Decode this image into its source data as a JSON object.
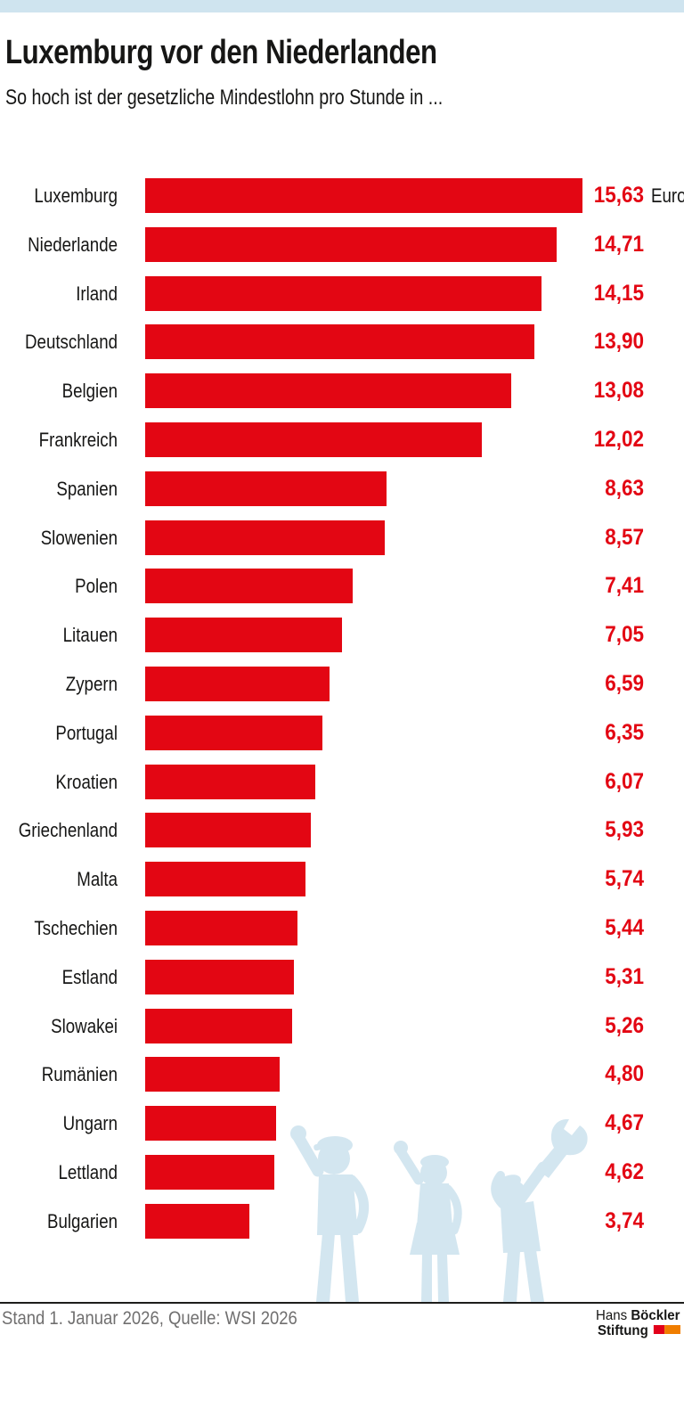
{
  "header": {
    "title": "Luxemburg vor den Niederlanden",
    "subtitle": "So hoch ist der gesetzliche Mindestlohn pro Stunde in ..."
  },
  "chart_data": {
    "type": "bar",
    "orientation": "horizontal",
    "title": "Luxemburg vor den Niederlanden",
    "subtitle": "So hoch ist der gesetzliche Mindestlohn pro Stunde in ...",
    "unit_label": "Euro",
    "xlim": [
      0,
      15.63
    ],
    "grid": false,
    "legend": "none",
    "categories": [
      "Luxemburg",
      "Niederlande",
      "Irland",
      "Deutschland",
      "Belgien",
      "Frankreich",
      "Spanien",
      "Slowenien",
      "Polen",
      "Litauen",
      "Zypern",
      "Portugal",
      "Kroatien",
      "Griechenland",
      "Malta",
      "Tschechien",
      "Estland",
      "Slowakei",
      "Rumänien",
      "Ungarn",
      "Lettland",
      "Bulgarien"
    ],
    "values": [
      15.63,
      14.71,
      14.15,
      13.9,
      13.08,
      12.02,
      8.63,
      8.57,
      7.41,
      7.05,
      6.59,
      6.35,
      6.07,
      5.93,
      5.74,
      5.44,
      5.31,
      5.26,
      4.8,
      4.67,
      4.62,
      3.74
    ],
    "value_labels": [
      "15,63",
      "14,71",
      "14,15",
      "13,90",
      "13,08",
      "12,02",
      "8,63",
      "8,57",
      "7,41",
      "7,05",
      "6,59",
      "6,35",
      "6,07",
      "5,93",
      "5,74",
      "5,44",
      "5,31",
      "5,26",
      "4,80",
      "4,67",
      "4,62",
      "3,74"
    ]
  },
  "footer": {
    "source": "Stand 1. Januar 2026, Quelle: WSI 2026",
    "logo": {
      "line1_regular": "Hans ",
      "line1_bold": "Böckler",
      "line2_bold": "Stiftung"
    }
  },
  "colors": {
    "bar_red": "#e30613",
    "value_red": "#e30613",
    "top_band_blue": "#cfe4ef",
    "silhouette_blue": "#d3e6f0",
    "source_gray": "#706f6f",
    "logo_red": "#e2001a",
    "logo_orange": "#f07d00",
    "text_black": "#161615"
  },
  "decor": {
    "figures": "three light-blue worker silhouettes: raised fist worker, raised fist woman, worker holding wrench"
  }
}
